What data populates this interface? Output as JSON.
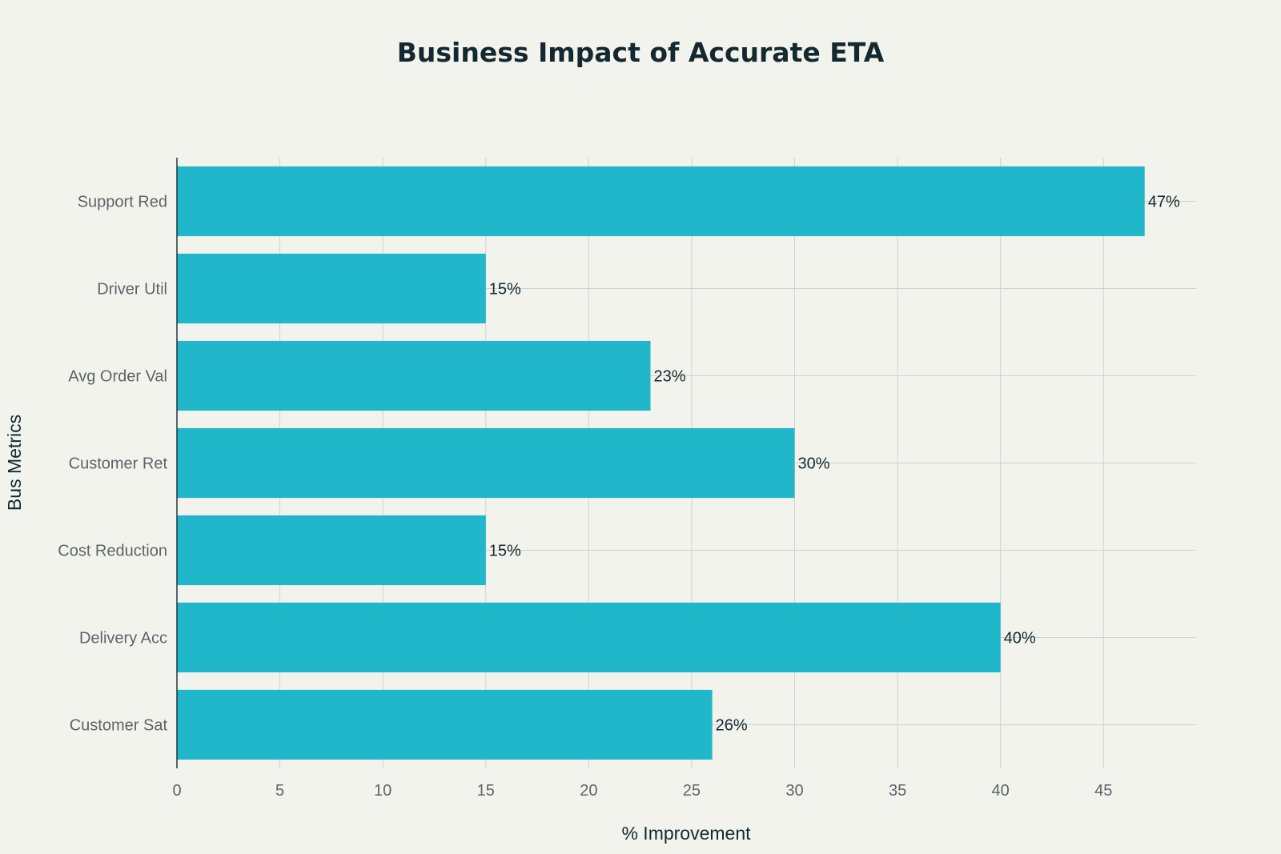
{
  "chart_data": {
    "type": "bar",
    "orientation": "horizontal",
    "title": "Business Impact of Accurate ETA",
    "xlabel": "% Improvement",
    "ylabel": "Bus Metrics",
    "categories": [
      "Customer Sat",
      "Delivery Acc",
      "Cost Reduction",
      "Customer Ret",
      "Avg Order Val",
      "Driver Util",
      "Support Red"
    ],
    "values": [
      26,
      40,
      15,
      30,
      23,
      15,
      47
    ],
    "data_labels": [
      "26%",
      "40%",
      "15%",
      "30%",
      "23%",
      "15%",
      "47%"
    ],
    "xlim": [
      0,
      49.5
    ],
    "xticks": [
      0,
      5,
      10,
      15,
      20,
      25,
      30,
      35,
      40,
      45
    ],
    "grid": true,
    "bar_color": "#21b7cb",
    "background_color": "#f3f3ee"
  }
}
